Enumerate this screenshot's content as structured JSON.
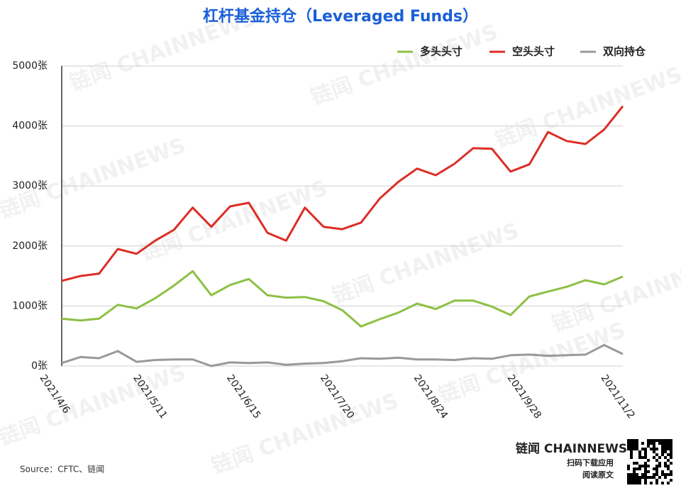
{
  "chart_data": {
    "type": "line",
    "title": "杠杆基金持仓（Leveraged Funds）",
    "categories": [
      "2021/4/6",
      null,
      null,
      null,
      null,
      "2021/5/11",
      null,
      null,
      null,
      null,
      "2021/6/15",
      null,
      null,
      null,
      null,
      "2021/7/20",
      null,
      null,
      null,
      null,
      "2021/8/24",
      null,
      null,
      null,
      null,
      "2021/9/28",
      null,
      null,
      null,
      null,
      "2021/11/2"
    ],
    "series": [
      {
        "name": "多头头寸",
        "color": "#8dc045",
        "values": [
          790,
          760,
          790,
          1020,
          960,
          1130,
          1340,
          1580,
          1180,
          1350,
          1450,
          1180,
          1140,
          1150,
          1080,
          930,
          660,
          780,
          890,
          1040,
          950,
          1090,
          1090,
          990,
          850,
          1160,
          1240,
          1320,
          1430,
          1360,
          1490
        ]
      },
      {
        "name": "空头头寸",
        "color": "#dc2d26",
        "values": [
          1420,
          1500,
          1540,
          1950,
          1870,
          2090,
          2270,
          2640,
          2320,
          2660,
          2720,
          2220,
          2090,
          2640,
          2320,
          2280,
          2390,
          2790,
          3070,
          3290,
          3180,
          3370,
          3630,
          3620,
          3240,
          3360,
          3900,
          3750,
          3700,
          3940,
          4330
        ]
      },
      {
        "name": "双向持仓",
        "color": "#999999",
        "values": [
          50,
          150,
          130,
          250,
          70,
          100,
          110,
          110,
          0,
          60,
          50,
          60,
          20,
          40,
          50,
          80,
          130,
          120,
          140,
          110,
          110,
          100,
          130,
          120,
          180,
          190,
          170,
          180,
          190,
          350,
          200
        ]
      }
    ],
    "ylim": [
      0,
      5000
    ],
    "yticks": [
      {
        "value": 0,
        "label": "0张"
      },
      {
        "value": 1000,
        "label": "1000张"
      },
      {
        "value": 2000,
        "label": "2000张"
      },
      {
        "value": 3000,
        "label": "3000张"
      },
      {
        "value": 4000,
        "label": "4000张"
      },
      {
        "value": 5000,
        "label": "5000张"
      }
    ],
    "grid": true,
    "legend": "top-right",
    "source": "Source：CFTC、链闻",
    "watermark": "链闻 CHAINNEWS",
    "logo": "链闻 CHAINNEWS",
    "download": "扫码下载应用",
    "read": "阅读原文"
  }
}
